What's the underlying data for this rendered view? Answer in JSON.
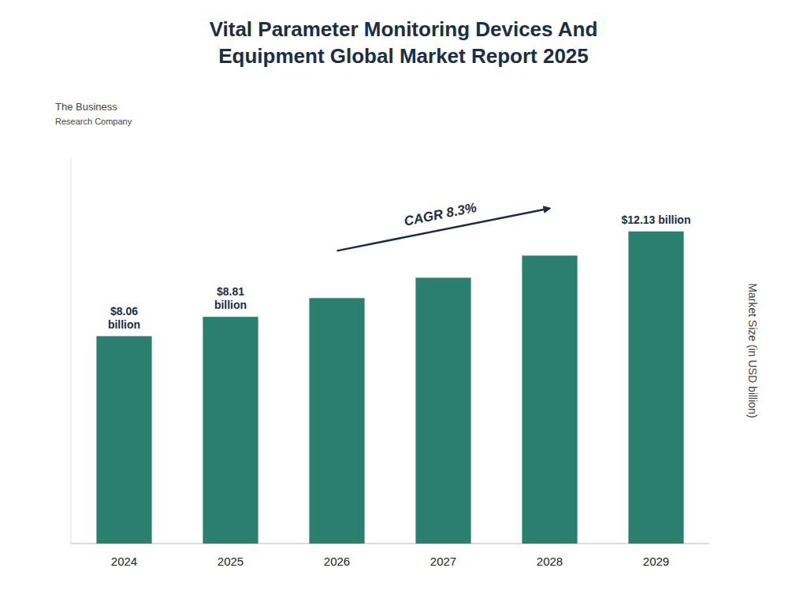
{
  "chart_data": {
    "type": "bar",
    "title": "Vital Parameter Monitoring Devices And\nEquipment Global Market Report 2025",
    "y_label": "Market Size (in USD billion)",
    "categories": [
      "2024",
      "2025",
      "2026",
      "2027",
      "2028",
      "2029"
    ],
    "values": [
      8.06,
      8.81,
      9.54,
      10.33,
      11.19,
      12.13
    ],
    "value_labels": [
      "$8.06\nbillion",
      "$8.81\nbillion",
      null,
      null,
      null,
      "$12.13 billion"
    ],
    "color": "#2a7f6f",
    "ylim": [
      0,
      15
    ],
    "tick_labels": "x",
    "grid": false,
    "annotations": [
      "CAGR 8.3%",
      "The Business",
      "Research Company"
    ]
  }
}
